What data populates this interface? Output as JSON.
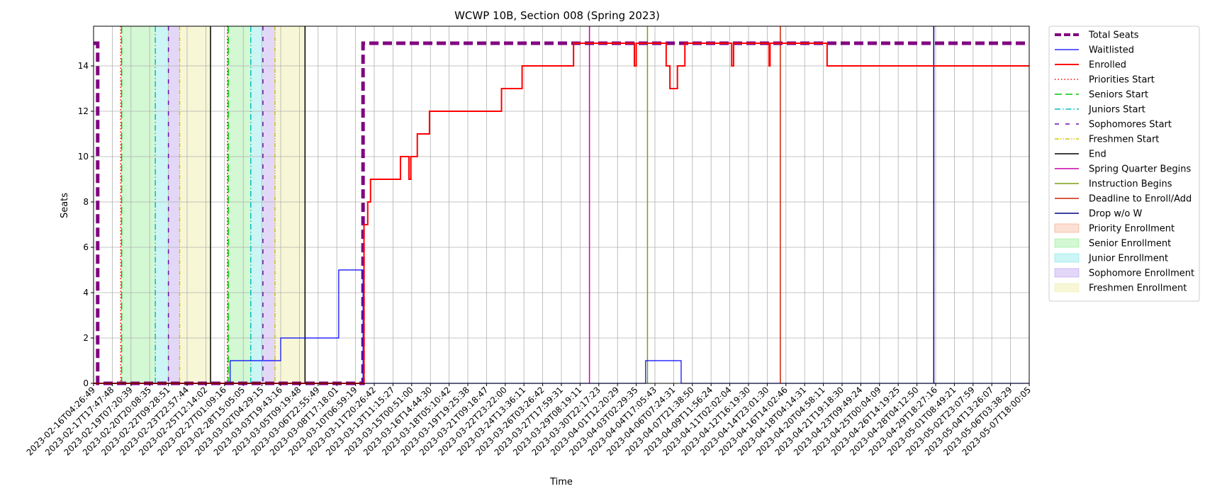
{
  "chart_data": {
    "type": "line",
    "title": "WCWP 10B, Section 008 (Spring 2023)",
    "xlabel": "Time",
    "ylabel": "Seats",
    "ylim": [
      0,
      15.75
    ],
    "yticks": [
      0,
      2,
      4,
      6,
      8,
      10,
      12,
      14
    ],
    "grid": true,
    "legend_placement": "outside-right",
    "x_tick_labels": [
      "2023-02-16T04:26:49",
      "2023-02-17T17:47:48",
      "2023-02-19T07:20:39",
      "2023-02-20T20:08:35",
      "2023-02-22T09:28:51",
      "2023-02-23T22:57:44",
      "2023-02-25T12:14:02",
      "2023-02-27T01:09:16",
      "2023-02-28T15:05:05",
      "2023-03-02T04:29:15",
      "2023-03-03T19:43:16",
      "2023-03-05T09:19:48",
      "2023-03-06T22:55:49",
      "2023-03-08T17:18:01",
      "2023-03-10T06:59:19",
      "2023-03-11T20:26:42",
      "2023-03-13T11:15:27",
      "2023-03-15T00:51:00",
      "2023-03-16T14:44:30",
      "2023-03-18T05:10:42",
      "2023-03-19T19:25:38",
      "2023-03-21T09:18:47",
      "2023-03-22T23:22:00",
      "2023-03-24T13:36:11",
      "2023-03-26T03:26:42",
      "2023-03-27T17:59:31",
      "2023-03-29T08:19:11",
      "2023-03-30T22:17:23",
      "2023-04-01T12:20:29",
      "2023-04-03T02:29:35",
      "2023-04-04T17:05:43",
      "2023-04-06T07:24:31",
      "2023-04-07T21:38:50",
      "2023-04-09T11:56:24",
      "2023-04-11T02:02:04",
      "2023-04-12T16:19:30",
      "2023-04-14T23:01:30",
      "2023-04-16T14:02:46",
      "2023-04-18T04:14:31",
      "2023-04-20T04:58:11",
      "2023-04-21T19:18:30",
      "2023-04-23T09:49:24",
      "2023-04-25T00:04:09",
      "2023-04-26T14:19:25",
      "2023-04-28T04:12:50",
      "2023-04-29T18:27:16",
      "2023-05-01T08:49:21",
      "2023-05-02T23:07:59",
      "2023-05-04T13:26:07",
      "2023-05-06T03:38:29",
      "2023-05-07T18:00:05"
    ],
    "series": [
      {
        "name": "Total Seats",
        "color": "#800080",
        "style": "dashed",
        "width": 5,
        "points": [
          [
            0,
            15
          ],
          [
            0.22,
            15
          ],
          [
            0.22,
            0
          ],
          [
            14.4,
            0
          ],
          [
            14.4,
            15
          ],
          [
            50,
            15
          ]
        ]
      },
      {
        "name": "Waitlisted",
        "color": "#0000ff",
        "style": "solid",
        "width": 1.2,
        "points": [
          [
            0,
            0
          ],
          [
            7.3,
            0
          ],
          [
            7.3,
            1
          ],
          [
            10,
            1
          ],
          [
            10,
            2
          ],
          [
            13.1,
            2
          ],
          [
            13.1,
            5
          ],
          [
            14.4,
            5
          ],
          [
            14.4,
            0
          ],
          [
            29.5,
            0
          ],
          [
            29.5,
            1
          ],
          [
            31.4,
            1
          ],
          [
            31.4,
            0
          ],
          [
            50,
            0
          ]
        ]
      },
      {
        "name": "Enrolled",
        "color": "#ff0000",
        "style": "solid",
        "width": 2,
        "points": [
          [
            0,
            0
          ],
          [
            14.45,
            0
          ],
          [
            14.45,
            7
          ],
          [
            14.65,
            7
          ],
          [
            14.65,
            8
          ],
          [
            14.8,
            8
          ],
          [
            14.8,
            9
          ],
          [
            16.4,
            9
          ],
          [
            16.4,
            10
          ],
          [
            16.85,
            10
          ],
          [
            16.85,
            9
          ],
          [
            16.95,
            9
          ],
          [
            16.95,
            10
          ],
          [
            17.3,
            10
          ],
          [
            17.3,
            11
          ],
          [
            17.95,
            11
          ],
          [
            17.95,
            12
          ],
          [
            21.8,
            12
          ],
          [
            21.8,
            13
          ],
          [
            22.9,
            13
          ],
          [
            22.9,
            14
          ],
          [
            25.65,
            14
          ],
          [
            25.65,
            15
          ],
          [
            28.9,
            15
          ],
          [
            28.9,
            14
          ],
          [
            29.0,
            14
          ],
          [
            29.0,
            15
          ],
          [
            30.6,
            15
          ],
          [
            30.6,
            14
          ],
          [
            30.8,
            14
          ],
          [
            30.8,
            13
          ],
          [
            31.2,
            13
          ],
          [
            31.2,
            14
          ],
          [
            31.6,
            14
          ],
          [
            31.6,
            15
          ],
          [
            34.1,
            15
          ],
          [
            34.1,
            14
          ],
          [
            34.2,
            14
          ],
          [
            34.2,
            15
          ],
          [
            36.1,
            15
          ],
          [
            36.1,
            14
          ],
          [
            36.15,
            14
          ],
          [
            36.15,
            15
          ],
          [
            39.2,
            15
          ],
          [
            39.2,
            14
          ],
          [
            50,
            14
          ]
        ]
      }
    ],
    "vertical_markers": [
      {
        "name": "Priorities Start",
        "color": "#ff0000",
        "style": "dotted",
        "x": [
          1.45,
          7.15
        ]
      },
      {
        "name": "Seniors Start",
        "color": "#00cc00",
        "style": "dashed",
        "x": [
          1.5,
          7.2
        ]
      },
      {
        "name": "Juniors Start",
        "color": "#00bfbf",
        "style": "dashdot",
        "x": [
          3.3,
          8.4
        ]
      },
      {
        "name": "Sophomores Start",
        "color": "#6a0dad",
        "style": "loosedash",
        "x": [
          4.0,
          9.05
        ]
      },
      {
        "name": "Freshmen Start",
        "color": "#d4c600",
        "style": "dashdotdot",
        "x": [
          4.6,
          9.7
        ]
      },
      {
        "name": "End",
        "color": "#000000",
        "style": "solid",
        "x": [
          6.25,
          11.3
        ]
      },
      {
        "name": "Spring Quarter Begins",
        "color": "#cc00aa",
        "style": "solid",
        "x": [
          26.5
        ]
      },
      {
        "name": "Instruction Begins",
        "color": "#7aa010",
        "style": "solid",
        "x": [
          29.6
        ]
      },
      {
        "name": "Deadline to Enroll/Add",
        "color": "#cc2200",
        "style": "solid",
        "x": [
          36.7
        ]
      },
      {
        "name": "Drop w/o W",
        "color": "#000080",
        "style": "solid",
        "x": [
          44.9
        ]
      }
    ],
    "shaded_regions": [
      {
        "name": "Priority Enrollment",
        "color": "#f4a582",
        "opacity": 0.35,
        "ranges": [
          [
            1.45,
            1.5
          ],
          [
            7.15,
            7.2
          ]
        ]
      },
      {
        "name": "Senior Enrollment",
        "color": "#90ee90",
        "opacity": 0.4,
        "ranges": [
          [
            1.5,
            3.3
          ],
          [
            7.2,
            8.4
          ]
        ]
      },
      {
        "name": "Junior Enrollment",
        "color": "#7fe5e5",
        "opacity": 0.4,
        "ranges": [
          [
            3.3,
            4.0
          ],
          [
            8.4,
            9.05
          ]
        ]
      },
      {
        "name": "Sophomore Enrollment",
        "color": "#b99bee",
        "opacity": 0.4,
        "ranges": [
          [
            4.0,
            4.6
          ],
          [
            9.05,
            9.7
          ]
        ]
      },
      {
        "name": "Freshmen Enrollment",
        "color": "#f0f0b0",
        "opacity": 0.5,
        "ranges": [
          [
            4.6,
            6.25
          ],
          [
            9.7,
            11.3
          ]
        ]
      }
    ],
    "legend": [
      {
        "label": "Total Seats",
        "kind": "line",
        "color": "#800080",
        "style": "dashed",
        "width": 4
      },
      {
        "label": "Waitlisted",
        "kind": "line",
        "color": "#0000ff",
        "style": "solid",
        "width": 1.2
      },
      {
        "label": "Enrolled",
        "kind": "line",
        "color": "#ff0000",
        "style": "solid",
        "width": 2
      },
      {
        "label": "Priorities Start",
        "kind": "line",
        "color": "#ff0000",
        "style": "dotted",
        "width": 1.5
      },
      {
        "label": "Seniors Start",
        "kind": "line",
        "color": "#00cc00",
        "style": "dashed",
        "width": 1.5
      },
      {
        "label": "Juniors Start",
        "kind": "line",
        "color": "#00bfbf",
        "style": "dashdot",
        "width": 1.5
      },
      {
        "label": "Sophomores Start",
        "kind": "line",
        "color": "#6a0dad",
        "style": "loosedash",
        "width": 1.5
      },
      {
        "label": "Freshmen Start",
        "kind": "line",
        "color": "#d4c600",
        "style": "dashdotdot",
        "width": 1.5
      },
      {
        "label": "End",
        "kind": "line",
        "color": "#000000",
        "style": "solid",
        "width": 1.5
      },
      {
        "label": "Spring Quarter Begins",
        "kind": "line",
        "color": "#cc00aa",
        "style": "solid",
        "width": 1.5
      },
      {
        "label": "Instruction Begins",
        "kind": "line",
        "color": "#7aa010",
        "style": "solid",
        "width": 1.5
      },
      {
        "label": "Deadline to Enroll/Add",
        "kind": "line",
        "color": "#cc2200",
        "style": "solid",
        "width": 1.5
      },
      {
        "label": "Drop w/o W",
        "kind": "line",
        "color": "#000080",
        "style": "solid",
        "width": 1.5
      },
      {
        "label": "Priority Enrollment",
        "kind": "patch",
        "color": "#f4a582",
        "opacity": 0.35
      },
      {
        "label": "Senior Enrollment",
        "kind": "patch",
        "color": "#90ee90",
        "opacity": 0.4
      },
      {
        "label": "Junior Enrollment",
        "kind": "patch",
        "color": "#7fe5e5",
        "opacity": 0.4
      },
      {
        "label": "Sophomore Enrollment",
        "kind": "patch",
        "color": "#b99bee",
        "opacity": 0.4
      },
      {
        "label": "Freshmen Enrollment",
        "kind": "patch",
        "color": "#f0f0b0",
        "opacity": 0.5
      }
    ]
  }
}
